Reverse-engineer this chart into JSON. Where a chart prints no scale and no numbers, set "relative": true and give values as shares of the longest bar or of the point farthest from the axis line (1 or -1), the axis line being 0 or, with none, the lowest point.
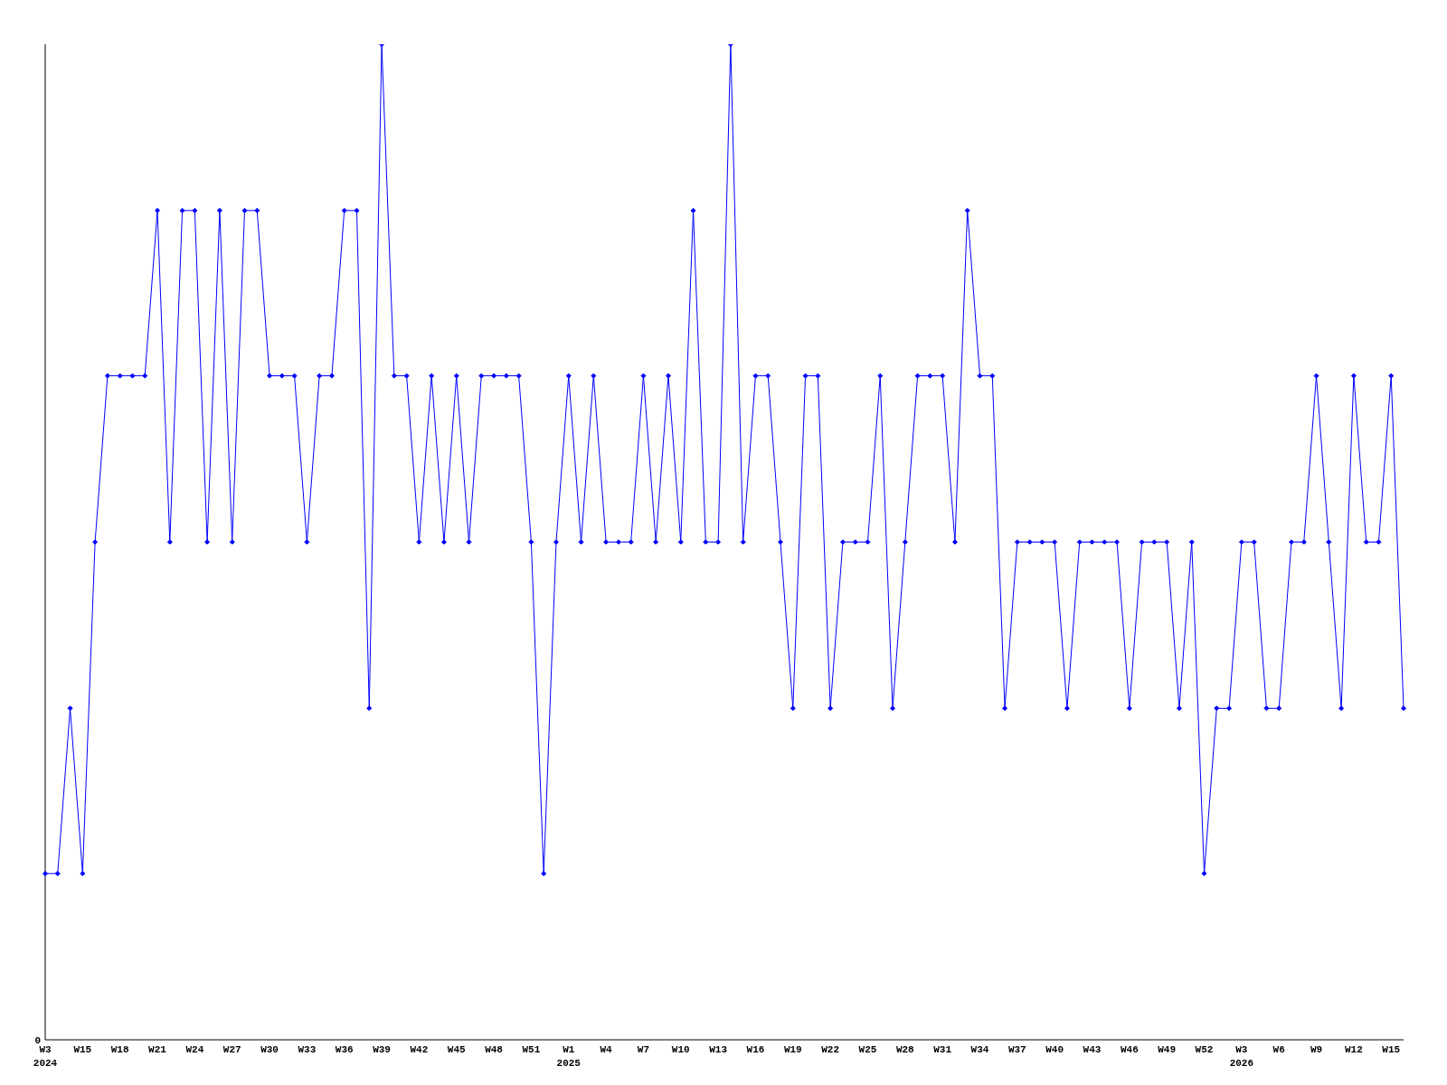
{
  "chart_data": {
    "type": "line",
    "relative": true,
    "color": "#0000ff",
    "marker": "diamond",
    "grid": false,
    "annotations": [
      "0"
    ],
    "categories": [
      "W3\n2024",
      null,
      null,
      "W15",
      null,
      null,
      "W18",
      null,
      null,
      "W21",
      null,
      null,
      "W24",
      null,
      null,
      "W27",
      null,
      null,
      "W30",
      null,
      null,
      "W33",
      null,
      null,
      "W36",
      null,
      null,
      "W39",
      null,
      null,
      "W42",
      null,
      null,
      "W45",
      null,
      null,
      "W48",
      null,
      null,
      "W51",
      null,
      null,
      "W1\n2025",
      null,
      null,
      "W4",
      null,
      null,
      "W7",
      null,
      null,
      "W10",
      null,
      null,
      "W13",
      null,
      null,
      "W16",
      null,
      null,
      "W19",
      null,
      null,
      "W22",
      null,
      null,
      "W25",
      null,
      null,
      "W28",
      null,
      null,
      "W31",
      null,
      null,
      "W34",
      null,
      null,
      "W37",
      null,
      null,
      "W40",
      null,
      null,
      "W43",
      null,
      null,
      "W46",
      null,
      null,
      "W49",
      null,
      null,
      "W52",
      null,
      null,
      "W3\n2026",
      null,
      null,
      "W6",
      null,
      null,
      "W9",
      null,
      null,
      "W12",
      null,
      null,
      "W15",
      null
    ],
    "values": [
      0.167,
      0.167,
      0.333,
      0.167,
      0.5,
      0.667,
      0.667,
      0.667,
      0.667,
      0.833,
      0.5,
      0.833,
      0.833,
      0.5,
      0.833,
      0.5,
      0.833,
      0.833,
      0.667,
      0.667,
      0.667,
      0.5,
      0.667,
      0.667,
      0.833,
      0.833,
      0.333,
      1,
      0.667,
      0.667,
      0.5,
      0.667,
      0.5,
      0.667,
      0.5,
      0.667,
      0.667,
      0.667,
      0.667,
      0.5,
      0.167,
      0.5,
      0.667,
      0.5,
      0.667,
      0.5,
      0.5,
      0.5,
      0.667,
      0.5,
      0.667,
      0.5,
      0.833,
      0.5,
      0.5,
      1,
      0.5,
      0.667,
      0.667,
      0.5,
      0.333,
      0.667,
      0.667,
      0.333,
      0.5,
      0.5,
      0.5,
      0.667,
      0.333,
      0.5,
      0.667,
      0.667,
      0.667,
      0.5,
      0.833,
      0.667,
      0.667,
      0.333,
      0.5,
      0.5,
      0.5,
      0.5,
      0.333,
      0.5,
      0.5,
      0.5,
      0.5,
      0.333,
      0.5,
      0.5,
      0.5,
      0.333,
      0.5,
      0.167,
      0.333,
      0.333,
      0.5,
      0.5,
      0.333,
      0.333,
      0.5,
      0.5,
      0.667,
      0.5,
      0.333,
      0.667,
      0.5,
      0.5,
      0.667,
      0.333
    ]
  }
}
